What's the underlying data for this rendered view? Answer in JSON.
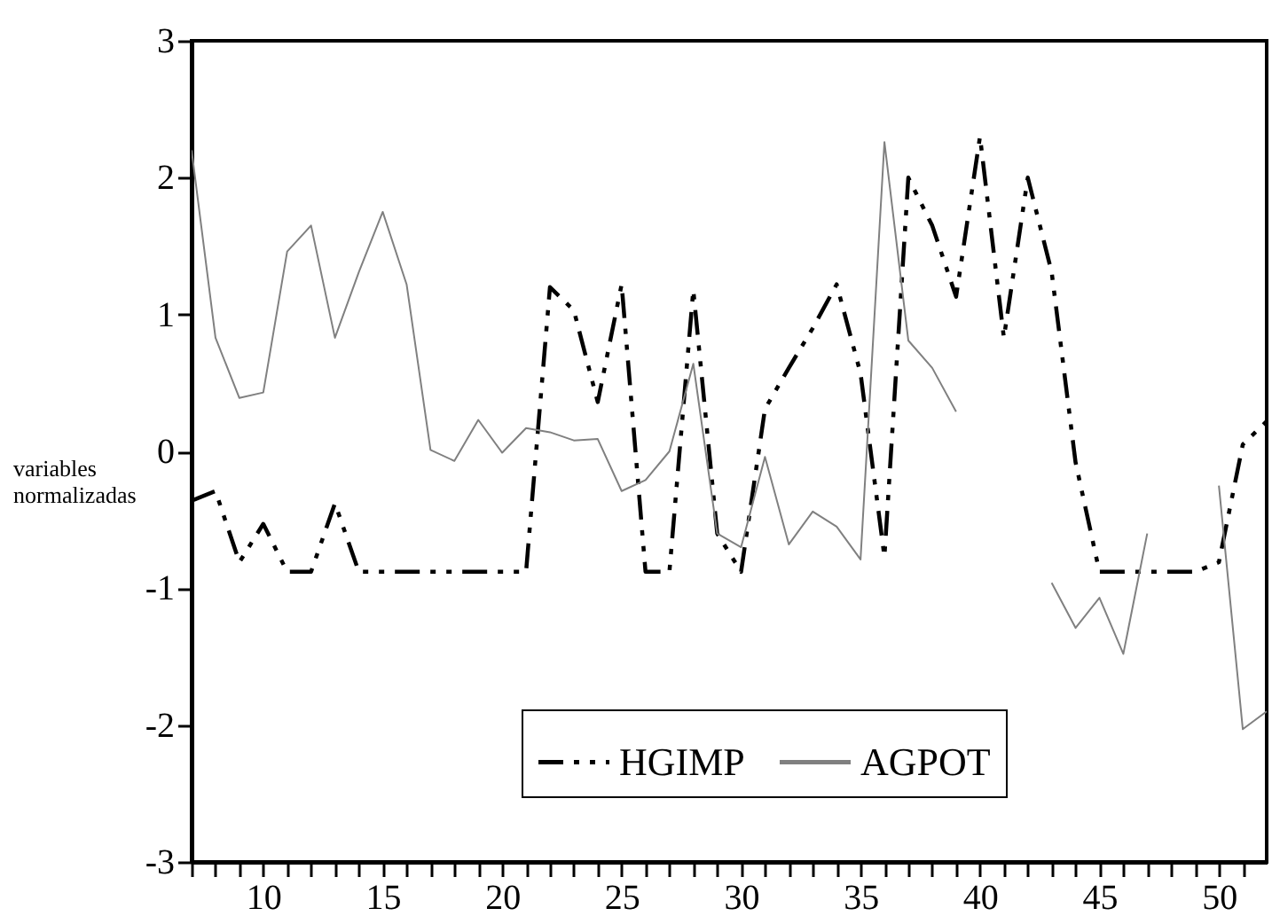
{
  "chart_data": {
    "type": "line",
    "ylabel": "variables normalizadas",
    "x": [
      7,
      8,
      9,
      10,
      11,
      12,
      13,
      14,
      15,
      16,
      17,
      18,
      19,
      20,
      21,
      22,
      23,
      24,
      25,
      26,
      27,
      28,
      29,
      30,
      31,
      32,
      33,
      34,
      35,
      36,
      37,
      38,
      39,
      40,
      41,
      42,
      43,
      44,
      45,
      46,
      47,
      48,
      49,
      50,
      51,
      52
    ],
    "series": [
      {
        "name": "HGIMP",
        "color": "#000000",
        "line_style": "dashed",
        "values": [
          -0.36,
          -0.29,
          -0.81,
          -0.53,
          -0.88,
          -0.88,
          -0.38,
          -0.88,
          -0.88,
          -0.88,
          -0.88,
          -0.88,
          -0.88,
          -0.88,
          -0.88,
          1.2,
          1.03,
          0.36,
          1.22,
          -0.88,
          -0.88,
          1.18,
          -0.6,
          -0.88,
          0.31,
          0.61,
          0.9,
          1.22,
          0.57,
          -0.77,
          2.0,
          1.65,
          1.13,
          2.3,
          0.83,
          2.0,
          1.31,
          -0.08,
          -0.88,
          -0.88,
          -0.88,
          -0.88,
          -0.88,
          -0.81,
          0.05,
          0.22
        ]
      },
      {
        "name": "AGPOT",
        "color": "#808080",
        "line_style": "solid",
        "values": [
          2.2,
          0.83,
          0.39,
          0.43,
          1.46,
          1.65,
          0.83,
          1.31,
          1.75,
          1.22,
          0.01,
          -0.07,
          0.23,
          -0.01,
          0.17,
          0.14,
          0.08,
          0.09,
          -0.29,
          -0.21,
          0.0,
          0.64,
          -0.6,
          -0.7,
          -0.04,
          -0.68,
          -0.44,
          -0.55,
          -0.79,
          2.26,
          0.81,
          0.61,
          0.29,
          null,
          null,
          null,
          -0.96,
          -1.29,
          -1.07,
          -1.48,
          -0.6,
          null,
          null,
          -0.25,
          -2.03,
          -1.9
        ]
      }
    ],
    "xlim": [
      7,
      52
    ],
    "xticks": [
      {
        "value": 7,
        "label": null
      },
      {
        "value": 8,
        "label": null
      },
      {
        "value": 9,
        "label": null
      },
      10,
      {
        "value": 11,
        "label": null
      },
      {
        "value": 12,
        "label": null
      },
      {
        "value": 13,
        "label": null
      },
      {
        "value": 14,
        "label": null
      },
      15,
      {
        "value": 16,
        "label": null
      },
      {
        "value": 17,
        "label": null
      },
      {
        "value": 18,
        "label": null
      },
      {
        "value": 19,
        "label": null
      },
      20,
      {
        "value": 21,
        "label": null
      },
      {
        "value": 22,
        "label": null
      },
      {
        "value": 23,
        "label": null
      },
      {
        "value": 24,
        "label": null
      },
      25,
      {
        "value": 26,
        "label": null
      },
      {
        "value": 27,
        "label": null
      },
      {
        "value": 28,
        "label": null
      },
      {
        "value": 29,
        "label": null
      },
      30,
      {
        "value": 31,
        "label": null
      },
      {
        "value": 32,
        "label": null
      },
      {
        "value": 33,
        "label": null
      },
      {
        "value": 34,
        "label": null
      },
      35,
      {
        "value": 36,
        "label": null
      },
      {
        "value": 37,
        "label": null
      },
      {
        "value": 38,
        "label": null
      },
      {
        "value": 39,
        "label": null
      },
      40,
      {
        "value": 41,
        "label": null
      },
      {
        "value": 42,
        "label": null
      },
      {
        "value": 43,
        "label": null
      },
      {
        "value": 44,
        "label": null
      },
      45,
      {
        "value": 46,
        "label": null
      },
      {
        "value": 47,
        "label": null
      },
      {
        "value": 48,
        "label": null
      },
      {
        "value": 49,
        "label": null
      },
      50,
      {
        "value": 51,
        "label": null
      }
    ],
    "ylim": [
      -3,
      3
    ],
    "yticks": [
      -3,
      -2,
      -1,
      0,
      1,
      2,
      3
    ],
    "grid": false,
    "legend": "bottom",
    "marker": "none"
  }
}
